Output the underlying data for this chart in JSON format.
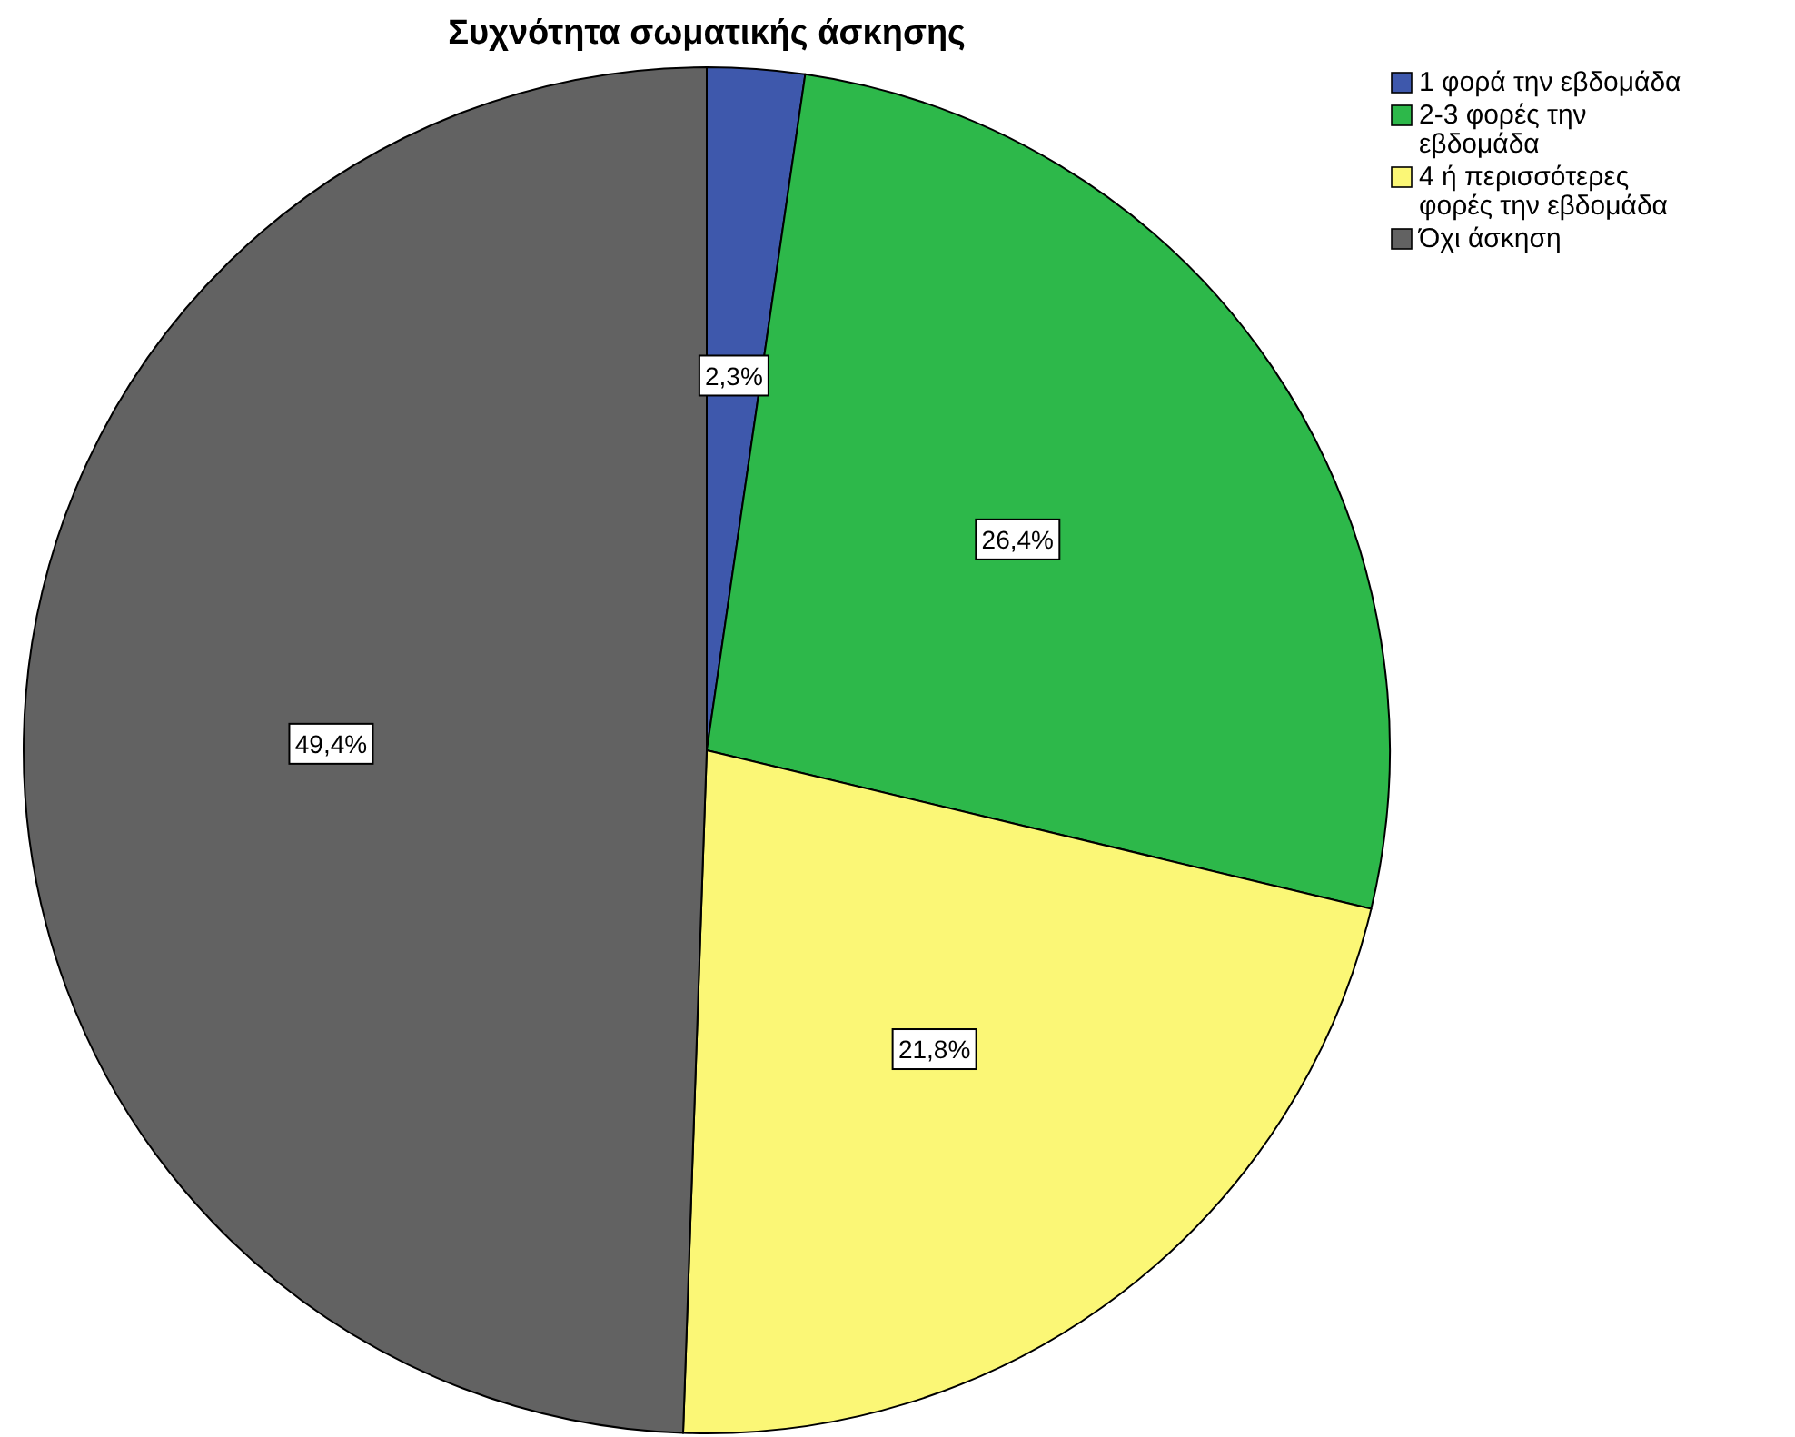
{
  "chart_data": {
    "type": "pie",
    "title": "Συχνότητα σωματικής άσκησης",
    "categories": [
      "1 φορά την εβδομάδα",
      "2-3 φορές την εβδομάδα",
      "4 ή περισσότερες φορές την εβδομάδα",
      "Όχι άσκηση"
    ],
    "values": [
      2.3,
      26.4,
      21.8,
      49.4
    ],
    "colors": [
      "#3e58ac",
      "#2db84a",
      "#fbf776",
      "#626262"
    ],
    "value_labels": [
      "2,3%",
      "26,4%",
      "21,8%",
      "49,4%"
    ],
    "legend": "top right"
  }
}
